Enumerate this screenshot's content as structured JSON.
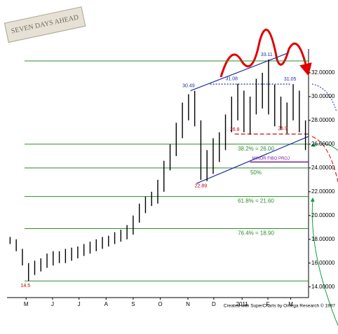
{
  "chart_data": {
    "type": "bar_range",
    "logo": "SEVEN DAYS AHEAD",
    "footer": "Created with SuperCharts by Omega Research © 1997",
    "xlim": [
      0,
      49
    ],
    "xticks": [
      {
        "value": 3.1,
        "label": "M"
      },
      {
        "value": 7.4,
        "label": "J"
      },
      {
        "value": 11.7,
        "label": "J"
      },
      {
        "value": 16.1,
        "label": "A"
      },
      {
        "value": 20.5,
        "label": "S"
      },
      {
        "value": 24.9,
        "label": "O"
      },
      {
        "value": 29.4,
        "label": "N"
      },
      {
        "value": 33.6,
        "label": "D"
      },
      {
        "value": 38.2,
        "label": "2011"
      },
      {
        "value": 42.4,
        "label": "F"
      },
      {
        "value": 46.1,
        "label": "M"
      }
    ],
    "ylim": [
      13.1,
      34
    ],
    "yticks": [
      {
        "value": 14,
        "label": "14.00000"
      },
      {
        "value": 16,
        "label": "16.00000"
      },
      {
        "value": 18,
        "label": "18.00000"
      },
      {
        "value": 20,
        "label": "20.00000"
      },
      {
        "value": 22,
        "label": "22.00000"
      },
      {
        "value": 24,
        "label": "24.00000"
      },
      {
        "value": 26,
        "label": "26.00000"
      },
      {
        "value": 28,
        "label": "28.00000"
      },
      {
        "value": 30,
        "label": "30.00000"
      },
      {
        "value": 32,
        "label": "32.00000"
      }
    ],
    "color": "#000000",
    "high": [
      18.2,
      18.0,
      17.2,
      16.0,
      16.2,
      16.4,
      16.8,
      17.0,
      17.0,
      17.2,
      17.3,
      17.4,
      17.6,
      17.8,
      18.0,
      18.2,
      18.3,
      18.6,
      18.8,
      19.2,
      20.0,
      21.0,
      21.6,
      22.0,
      23.0,
      24.6,
      26.0,
      27.8,
      29.5,
      30.2,
      30.49,
      28.0,
      25.5,
      26.5,
      27.0,
      28.5,
      30.0,
      31.08,
      30.5,
      30.0,
      31.5,
      32.0,
      33.11,
      31.0,
      30.0,
      29.5,
      31.05,
      30.5,
      28.0
    ],
    "low": [
      17.6,
      17.0,
      15.8,
      14.5,
      15.0,
      15.3,
      15.6,
      15.8,
      16.0,
      16.0,
      16.2,
      16.4,
      16.6,
      16.8,
      17.0,
      17.2,
      17.4,
      17.6,
      17.8,
      18.0,
      18.4,
      19.4,
      20.2,
      20.8,
      21.0,
      22.0,
      23.8,
      25.0,
      26.5,
      28.0,
      27.5,
      23.0,
      22.89,
      23.5,
      24.5,
      25.5,
      27.0,
      28.0,
      27.0,
      26.8,
      28.5,
      29.0,
      28.5,
      27.5,
      27.2,
      26.9,
      28.0,
      27.0,
      25.5
    ],
    "levels": [
      {
        "value": 33.0,
        "label": null,
        "color": "#2e8b2e"
      },
      {
        "value": 26.0,
        "label": "38.2% = 26.00",
        "color": "#2e8b2e"
      },
      {
        "value": 24.0,
        "label": "50%",
        "color": "#2e8b2e"
      },
      {
        "value": 21.6,
        "label": "61.8% = 21.60",
        "color": "#2e8b2e"
      },
      {
        "value": 18.9,
        "label": "76.4% = 18.90",
        "color": "#2e8b2e"
      },
      {
        "value": 14.5,
        "label": null,
        "color": "#2e8b2e"
      }
    ],
    "projection": {
      "value": 24.5,
      "label": "MINOR FIBO PROJ",
      "color": "#7a1f9a",
      "x": [
        39.5,
        49
      ]
    },
    "point_labels": [
      {
        "x": 29.5,
        "value": 30.49,
        "color": "#1f2fa0",
        "dy": -1
      },
      {
        "x": 36.5,
        "value": 31.08,
        "color": "#1f2fa0",
        "dy": -1
      },
      {
        "x": 42.2,
        "value": 33.11,
        "color": "#1f2fa0",
        "dy": -1
      },
      {
        "x": 46.0,
        "value": 31.05,
        "color": "#1f2fa0",
        "dy": -1
      },
      {
        "x": 31.5,
        "value": 22.89,
        "color": "#c00000",
        "dy": 1
      },
      {
        "x": 37.0,
        "value": 26.8,
        "color": "#c00000",
        "dy": -1
      },
      {
        "x": 44.8,
        "value": 26.9,
        "color": "#c00000",
        "dy": -1
      },
      {
        "x": 3.0,
        "value": 14.5,
        "color": "#c00000",
        "dy": 1
      }
    ],
    "trendlines": [
      {
        "x": [
          29.8,
          45.6
        ],
        "y": [
          30.49,
          33.65
        ],
        "color": "#1f2fa0",
        "dash": "none"
      },
      {
        "x": [
          30.8,
          49
        ],
        "y": [
          22.7,
          26.65
        ],
        "color": "#1f2fa0",
        "dash": "none"
      },
      {
        "x": [
          37,
          49
        ],
        "y": [
          26.85,
          26.85
        ],
        "color": "#c00000",
        "dash": "6 3"
      },
      {
        "x": [
          33,
          46
        ],
        "y": [
          31.05,
          31.05
        ],
        "color": "#1f2fa0",
        "dash": "2 2"
      }
    ]
  }
}
